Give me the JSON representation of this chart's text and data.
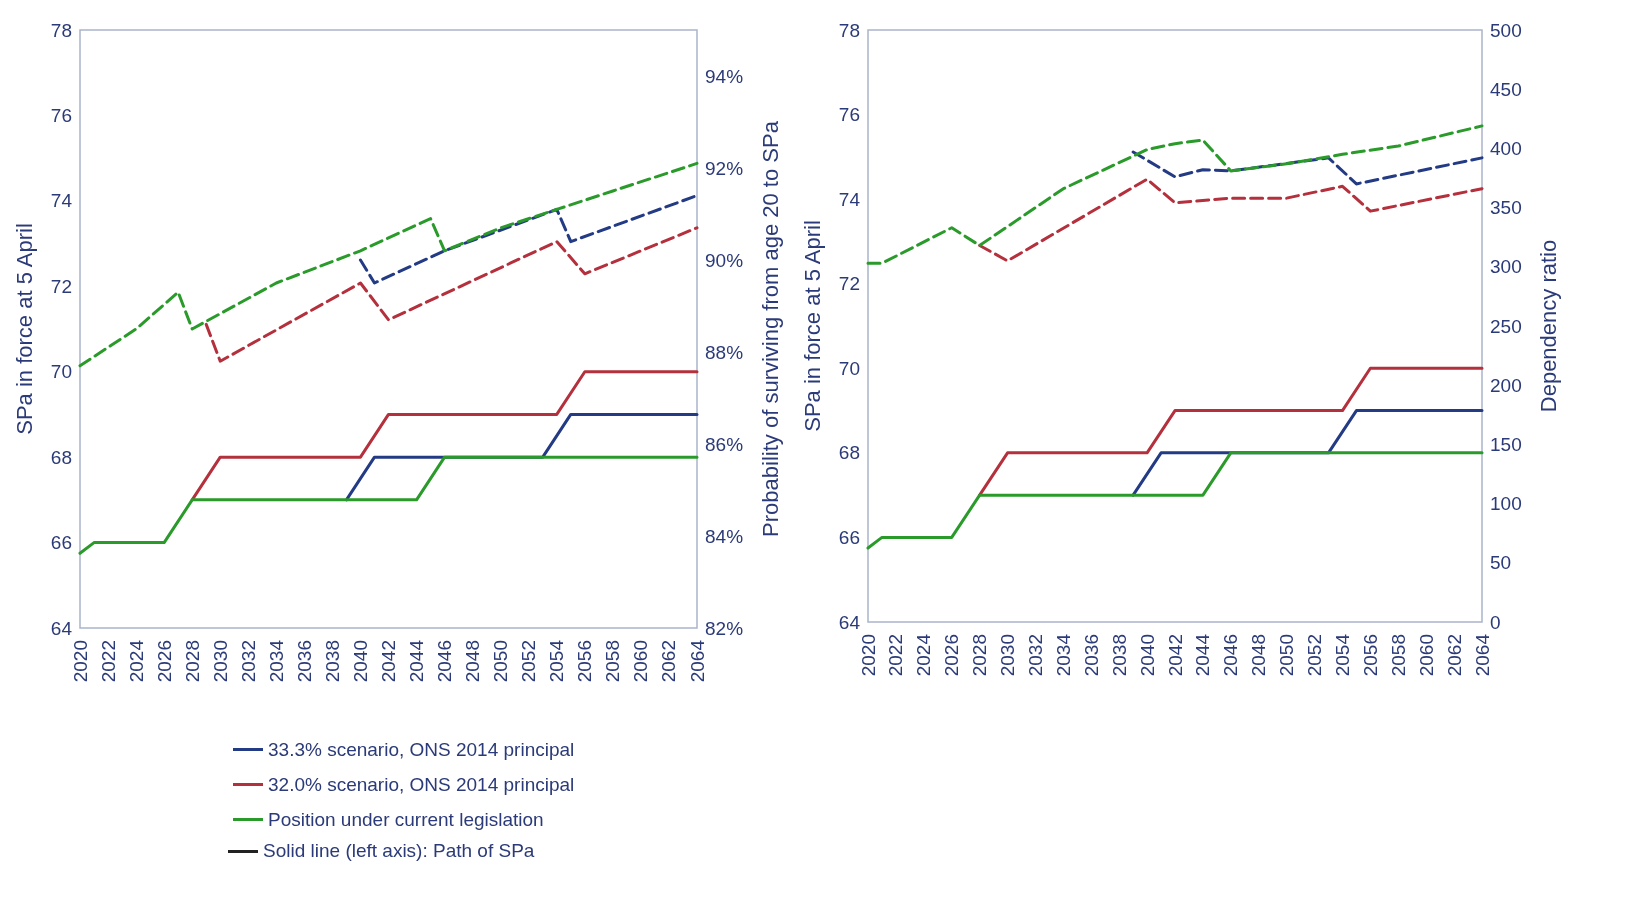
{
  "chart_data": [
    {
      "type": "line",
      "ylabel": "SPa in force at 5 April",
      "y2label": "Probability of surviving from age 20 to SPa",
      "xlim": [
        2020,
        2064
      ],
      "xticks": [
        2020,
        2022,
        2024,
        2026,
        2028,
        2030,
        2032,
        2034,
        2036,
        2038,
        2040,
        2042,
        2044,
        2046,
        2048,
        2050,
        2052,
        2054,
        2056,
        2058,
        2060,
        2062,
        2064
      ],
      "ylim": [
        64,
        78
      ],
      "yticks": [
        64,
        66,
        68,
        70,
        72,
        74,
        76,
        78
      ],
      "y2lim": [
        82,
        95
      ],
      "y2ticks": [
        {
          "value": 82,
          "label": "82%"
        },
        {
          "value": 84,
          "label": "84%"
        },
        {
          "value": 86,
          "label": "86%"
        },
        {
          "value": 88,
          "label": "88%"
        },
        {
          "value": 90,
          "label": "90%"
        },
        {
          "value": 92,
          "label": "92%"
        },
        {
          "value": 94,
          "label": "94%"
        }
      ],
      "grid": false,
      "legend": "bottom",
      "marker": "none",
      "annotations": [
        "Solid line (left axis): Path of SPa"
      ],
      "series": [
        {
          "name": "33.3% scenario, ONS 2014 principal",
          "color": "#233a84",
          "axis": "y",
          "line_style": "solid",
          "x": [
            2039,
            2041,
            2053,
            2055,
            2064
          ],
          "values": [
            67,
            68,
            68,
            69,
            69
          ]
        },
        {
          "name": "32.0% scenario, ONS 2014 principal",
          "color": "#b3303c",
          "axis": "y",
          "line_style": "solid",
          "x": [
            2028,
            2030,
            2040,
            2042,
            2054,
            2056,
            2064
          ],
          "values": [
            67,
            68,
            68,
            69,
            69,
            70,
            70
          ]
        },
        {
          "name": "Position under current legislation",
          "color": "#2a9a2a",
          "axis": "y",
          "line_style": "solid",
          "x": [
            2020,
            2021,
            2026,
            2028,
            2044,
            2046,
            2064
          ],
          "values": [
            65.75,
            66,
            66,
            67,
            67,
            68,
            68
          ]
        },
        {
          "color": "#233a84",
          "axis": "y2",
          "line_style": "dashed",
          "x": [
            2040,
            2041,
            2046,
            2054,
            2055,
            2064
          ],
          "values": [
            90.0,
            89.5,
            90.2,
            91.1,
            90.4,
            91.4
          ]
        },
        {
          "color": "#b3303c",
          "axis": "y2",
          "line_style": "dashed",
          "x": [
            2029,
            2030,
            2040,
            2042,
            2054,
            2056,
            2064
          ],
          "values": [
            88.6,
            87.8,
            89.5,
            88.7,
            90.4,
            89.7,
            90.7
          ]
        },
        {
          "color": "#2a9a2a",
          "axis": "y2",
          "line_style": "dashed",
          "x": [
            2020,
            2024,
            2027,
            2028,
            2034,
            2040,
            2045,
            2046,
            2050,
            2054,
            2058,
            2064
          ],
          "values": [
            87.7,
            88.5,
            89.3,
            88.5,
            89.5,
            90.2,
            90.9,
            90.2,
            90.7,
            91.1,
            91.5,
            92.1
          ]
        }
      ]
    },
    {
      "type": "line",
      "ylabel": "SPa in force at 5 April",
      "y2label": "Dependency ratio",
      "xlim": [
        2020,
        2064
      ],
      "xticks": [
        2020,
        2022,
        2024,
        2026,
        2028,
        2030,
        2032,
        2034,
        2036,
        2038,
        2040,
        2042,
        2044,
        2046,
        2048,
        2050,
        2052,
        2054,
        2056,
        2058,
        2060,
        2062,
        2064
      ],
      "ylim": [
        64,
        78
      ],
      "yticks": [
        64,
        66,
        68,
        70,
        72,
        74,
        76,
        78
      ],
      "y2lim": [
        0,
        500
      ],
      "y2ticks": [
        0,
        50,
        100,
        150,
        200,
        250,
        300,
        350,
        400,
        450,
        500
      ],
      "grid": false,
      "marker": "none",
      "series": [
        {
          "color": "#233a84",
          "axis": "y",
          "line_style": "solid",
          "x": [
            2039,
            2041,
            2053,
            2055,
            2064
          ],
          "values": [
            67,
            68,
            68,
            69,
            69
          ]
        },
        {
          "color": "#b3303c",
          "axis": "y",
          "line_style": "solid",
          "x": [
            2028,
            2030,
            2040,
            2042,
            2054,
            2056,
            2064
          ],
          "values": [
            67,
            68,
            68,
            69,
            69,
            70,
            70
          ]
        },
        {
          "color": "#2a9a2a",
          "axis": "y",
          "line_style": "solid",
          "x": [
            2020,
            2021,
            2026,
            2028,
            2044,
            2046,
            2064
          ],
          "values": [
            65.75,
            66,
            66,
            67,
            67,
            68,
            68
          ]
        },
        {
          "color": "#233a84",
          "axis": "y2",
          "line_style": "dashed",
          "x": [
            2039,
            2042,
            2044,
            2046,
            2053,
            2055,
            2064
          ],
          "values": [
            397,
            376,
            382,
            381,
            392,
            370,
            392
          ]
        },
        {
          "color": "#b3303c",
          "axis": "y2",
          "line_style": "dashed",
          "x": [
            2028,
            2030,
            2040,
            2042,
            2046,
            2050,
            2054,
            2056,
            2064
          ],
          "values": [
            318,
            305,
            374,
            354,
            358,
            358,
            368,
            347,
            366
          ]
        },
        {
          "color": "#2a9a2a",
          "axis": "y2",
          "line_style": "dashed",
          "x": [
            2020,
            2021,
            2026,
            2028,
            2034,
            2040,
            2042,
            2044,
            2046,
            2050,
            2054,
            2058,
            2064
          ],
          "values": [
            303,
            303,
            333,
            318,
            366,
            399,
            404,
            407,
            381,
            387,
            395,
            402,
            419
          ]
        }
      ]
    }
  ]
}
